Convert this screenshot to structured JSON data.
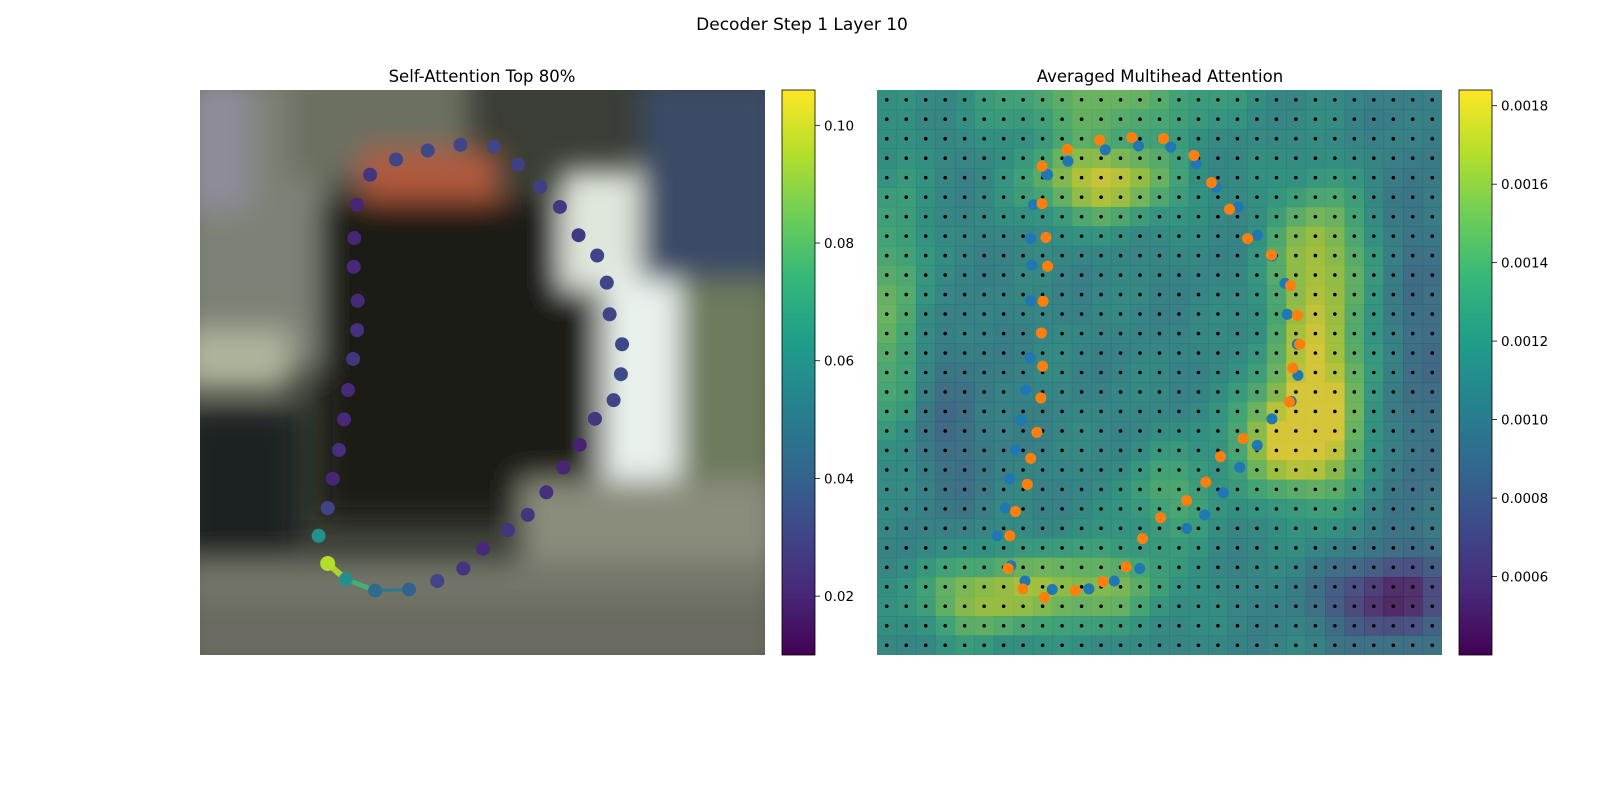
{
  "figure": {
    "suptitle": "Decoder Step 1 Layer 10"
  },
  "colormap": {
    "name": "viridis",
    "stops": [
      "#440154",
      "#482878",
      "#3e4989",
      "#31688e",
      "#26828e",
      "#1f9e89",
      "#35b779",
      "#6ece58",
      "#b5de2b",
      "#fde725"
    ]
  },
  "chart_data": [
    {
      "type": "scatter",
      "title": "Self-Attention Top 80%",
      "background": "blurred photo (street scene)",
      "xlim": [
        0,
        1
      ],
      "ylim": [
        1,
        0
      ],
      "colorbar": {
        "range": [
          0.01,
          0.106
        ],
        "ticks": [
          "0.02",
          "0.04",
          "0.06",
          "0.08",
          "0.10"
        ],
        "tick_values": [
          0.02,
          0.04,
          0.06,
          0.08,
          0.1
        ]
      },
      "points": [
        {
          "x": 0.226,
          "y": 0.838,
          "v": 0.095
        },
        {
          "x": 0.258,
          "y": 0.866,
          "v": 0.058
        },
        {
          "x": 0.31,
          "y": 0.886,
          "v": 0.043
        },
        {
          "x": 0.37,
          "y": 0.884,
          "v": 0.04
        },
        {
          "x": 0.42,
          "y": 0.869,
          "v": 0.03
        },
        {
          "x": 0.466,
          "y": 0.847,
          "v": 0.025
        },
        {
          "x": 0.501,
          "y": 0.812,
          "v": 0.021
        },
        {
          "x": 0.545,
          "y": 0.779,
          "v": 0.025
        },
        {
          "x": 0.58,
          "y": 0.752,
          "v": 0.025
        },
        {
          "x": 0.613,
          "y": 0.712,
          "v": 0.023
        },
        {
          "x": 0.643,
          "y": 0.668,
          "v": 0.02
        },
        {
          "x": 0.672,
          "y": 0.628,
          "v": 0.019
        },
        {
          "x": 0.699,
          "y": 0.582,
          "v": 0.025
        },
        {
          "x": 0.732,
          "y": 0.549,
          "v": 0.03
        },
        {
          "x": 0.745,
          "y": 0.503,
          "v": 0.032
        },
        {
          "x": 0.747,
          "y": 0.45,
          "v": 0.031
        },
        {
          "x": 0.725,
          "y": 0.397,
          "v": 0.03
        },
        {
          "x": 0.72,
          "y": 0.341,
          "v": 0.03
        },
        {
          "x": 0.703,
          "y": 0.293,
          "v": 0.03
        },
        {
          "x": 0.67,
          "y": 0.257,
          "v": 0.026
        },
        {
          "x": 0.637,
          "y": 0.207,
          "v": 0.026
        },
        {
          "x": 0.602,
          "y": 0.172,
          "v": 0.028
        },
        {
          "x": 0.563,
          "y": 0.132,
          "v": 0.028
        },
        {
          "x": 0.52,
          "y": 0.1,
          "v": 0.03
        },
        {
          "x": 0.461,
          "y": 0.097,
          "v": 0.03
        },
        {
          "x": 0.403,
          "y": 0.107,
          "v": 0.031
        },
        {
          "x": 0.347,
          "y": 0.123,
          "v": 0.03
        },
        {
          "x": 0.301,
          "y": 0.15,
          "v": 0.025
        },
        {
          "x": 0.278,
          "y": 0.203,
          "v": 0.02
        },
        {
          "x": 0.273,
          "y": 0.262,
          "v": 0.02
        },
        {
          "x": 0.272,
          "y": 0.313,
          "v": 0.021
        },
        {
          "x": 0.279,
          "y": 0.373,
          "v": 0.021
        },
        {
          "x": 0.278,
          "y": 0.425,
          "v": 0.023
        },
        {
          "x": 0.271,
          "y": 0.476,
          "v": 0.025
        },
        {
          "x": 0.262,
          "y": 0.531,
          "v": 0.021
        },
        {
          "x": 0.255,
          "y": 0.583,
          "v": 0.021
        },
        {
          "x": 0.246,
          "y": 0.637,
          "v": 0.023
        },
        {
          "x": 0.235,
          "y": 0.688,
          "v": 0.02
        },
        {
          "x": 0.226,
          "y": 0.74,
          "v": 0.03
        },
        {
          "x": 0.21,
          "y": 0.789,
          "v": 0.058
        }
      ],
      "path": [
        {
          "x": 0.226,
          "y": 0.838,
          "v": 0.095
        },
        {
          "x": 0.258,
          "y": 0.866,
          "v": 0.075
        },
        {
          "x": 0.31,
          "y": 0.886,
          "v": 0.05
        },
        {
          "x": 0.37,
          "y": 0.884,
          "v": 0.04
        }
      ]
    },
    {
      "type": "heatmap",
      "title": "Averaged Multihead Attention",
      "grid_size": 29,
      "colorbar": {
        "range": [
          0.0004,
          0.00184
        ],
        "ticks": [
          "0.0006",
          "0.0008",
          "0.0010",
          "0.0012",
          "0.0014",
          "0.0016",
          "0.0018"
        ],
        "tick_values": [
          0.0006,
          0.0008,
          0.001,
          0.0012,
          0.0014,
          0.0016,
          0.0018
        ]
      },
      "peaks": [
        {
          "x": 0.4,
          "y": 0.16,
          "v": 0.0018,
          "sx": 0.09,
          "sy": 0.05
        },
        {
          "x": 0.78,
          "y": 0.5,
          "v": 0.0018,
          "sx": 0.06,
          "sy": 0.14
        },
        {
          "x": 0.73,
          "y": 0.62,
          "v": 0.0017,
          "sx": 0.07,
          "sy": 0.06
        },
        {
          "x": 0.78,
          "y": 0.27,
          "v": 0.0015,
          "sx": 0.06,
          "sy": 0.08
        },
        {
          "x": 0.18,
          "y": 0.9,
          "v": 0.0016,
          "sx": 0.08,
          "sy": 0.05
        },
        {
          "x": 0.37,
          "y": 0.88,
          "v": 0.0016,
          "sx": 0.1,
          "sy": 0.05
        },
        {
          "x": 0.03,
          "y": 0.4,
          "v": 0.0015,
          "sx": 0.04,
          "sy": 0.18
        },
        {
          "x": 0.4,
          "y": 0.02,
          "v": 0.0015,
          "sx": 0.15,
          "sy": 0.04
        },
        {
          "x": 0.52,
          "y": 0.72,
          "v": 0.0014,
          "sx": 0.06,
          "sy": 0.06
        },
        {
          "x": 0.96,
          "y": 0.5,
          "v": 0.0009,
          "sx": 0.05,
          "sy": 0.3
        },
        {
          "x": 0.9,
          "y": 0.9,
          "v": 0.0005,
          "sx": 0.08,
          "sy": 0.05
        },
        {
          "x": 0.12,
          "y": 0.6,
          "v": 0.0009,
          "sx": 0.06,
          "sy": 0.12
        }
      ],
      "base_value": 0.0011,
      "series": [
        {
          "points": [
            {
              "x": 0.3,
              "y": 0.149
            },
            {
              "x": 0.338,
              "y": 0.126
            },
            {
              "x": 0.404,
              "y": 0.106
            },
            {
              "x": 0.463,
              "y": 0.099
            },
            {
              "x": 0.52,
              "y": 0.101
            },
            {
              "x": 0.565,
              "y": 0.131
            },
            {
              "x": 0.6,
              "y": 0.172
            },
            {
              "x": 0.639,
              "y": 0.207
            },
            {
              "x": 0.673,
              "y": 0.257
            },
            {
              "x": 0.699,
              "y": 0.294
            },
            {
              "x": 0.722,
              "y": 0.342
            },
            {
              "x": 0.726,
              "y": 0.397
            },
            {
              "x": 0.744,
              "y": 0.45
            },
            {
              "x": 0.745,
              "y": 0.505
            },
            {
              "x": 0.733,
              "y": 0.551
            },
            {
              "x": 0.699,
              "y": 0.582
            },
            {
              "x": 0.673,
              "y": 0.629
            },
            {
              "x": 0.642,
              "y": 0.668
            },
            {
              "x": 0.613,
              "y": 0.713
            },
            {
              "x": 0.58,
              "y": 0.752
            },
            {
              "x": 0.548,
              "y": 0.776
            },
            {
              "x": 0.465,
              "y": 0.847
            },
            {
              "x": 0.42,
              "y": 0.869
            },
            {
              "x": 0.375,
              "y": 0.883
            },
            {
              "x": 0.31,
              "y": 0.884
            },
            {
              "x": 0.262,
              "y": 0.869
            },
            {
              "x": 0.237,
              "y": 0.842
            },
            {
              "x": 0.213,
              "y": 0.789
            },
            {
              "x": 0.227,
              "y": 0.74
            },
            {
              "x": 0.235,
              "y": 0.688
            },
            {
              "x": 0.245,
              "y": 0.637
            },
            {
              "x": 0.255,
              "y": 0.584
            },
            {
              "x": 0.263,
              "y": 0.531
            },
            {
              "x": 0.271,
              "y": 0.474
            },
            {
              "x": 0.272,
              "y": 0.373
            },
            {
              "x": 0.274,
              "y": 0.31
            },
            {
              "x": 0.272,
              "y": 0.263
            },
            {
              "x": 0.277,
              "y": 0.203
            },
            {
              "x": 0.302,
              "y": 0.15
            }
          ],
          "color": "#1f77b4"
        },
        {
          "points": [
            {
              "x": 0.292,
              "y": 0.135
            },
            {
              "x": 0.337,
              "y": 0.105
            },
            {
              "x": 0.394,
              "y": 0.089
            },
            {
              "x": 0.451,
              "y": 0.084
            },
            {
              "x": 0.507,
              "y": 0.086
            },
            {
              "x": 0.561,
              "y": 0.116
            },
            {
              "x": 0.592,
              "y": 0.164
            },
            {
              "x": 0.624,
              "y": 0.211
            },
            {
              "x": 0.656,
              "y": 0.263
            },
            {
              "x": 0.698,
              "y": 0.292
            },
            {
              "x": 0.732,
              "y": 0.346
            },
            {
              "x": 0.744,
              "y": 0.399
            },
            {
              "x": 0.748,
              "y": 0.45
            },
            {
              "x": 0.736,
              "y": 0.492
            },
            {
              "x": 0.73,
              "y": 0.552
            },
            {
              "x": 0.648,
              "y": 0.617
            },
            {
              "x": 0.608,
              "y": 0.649
            },
            {
              "x": 0.582,
              "y": 0.694
            },
            {
              "x": 0.548,
              "y": 0.727
            },
            {
              "x": 0.502,
              "y": 0.757
            },
            {
              "x": 0.47,
              "y": 0.794
            },
            {
              "x": 0.441,
              "y": 0.844
            },
            {
              "x": 0.4,
              "y": 0.87
            },
            {
              "x": 0.351,
              "y": 0.886
            },
            {
              "x": 0.296,
              "y": 0.898
            },
            {
              "x": 0.258,
              "y": 0.883
            },
            {
              "x": 0.232,
              "y": 0.847
            },
            {
              "x": 0.235,
              "y": 0.789
            },
            {
              "x": 0.245,
              "y": 0.746
            },
            {
              "x": 0.266,
              "y": 0.698
            },
            {
              "x": 0.272,
              "y": 0.652
            },
            {
              "x": 0.283,
              "y": 0.606
            },
            {
              "x": 0.29,
              "y": 0.545
            },
            {
              "x": 0.293,
              "y": 0.489
            },
            {
              "x": 0.291,
              "y": 0.43
            },
            {
              "x": 0.294,
              "y": 0.374
            },
            {
              "x": 0.302,
              "y": 0.312
            },
            {
              "x": 0.299,
              "y": 0.261
            },
            {
              "x": 0.292,
              "y": 0.201
            }
          ],
          "color": "#ff7f0e"
        }
      ]
    }
  ]
}
